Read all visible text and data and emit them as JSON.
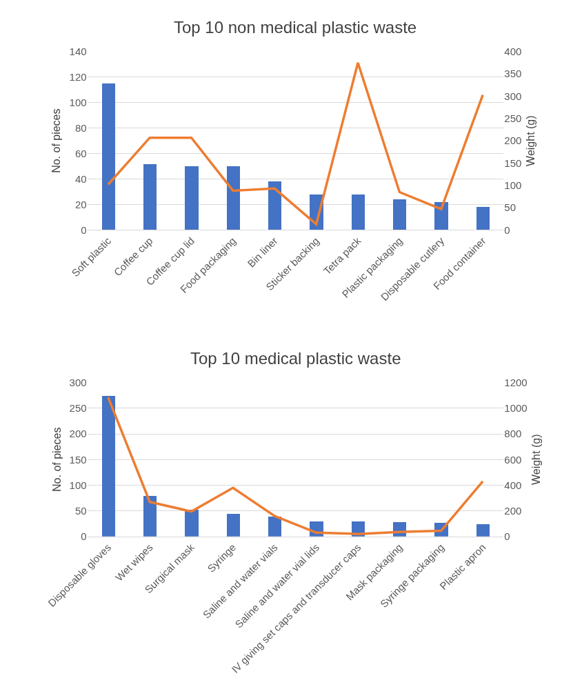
{
  "chart_data": [
    {
      "type": "bar",
      "title": "Top 10 non medical plastic waste",
      "categories": [
        "Soft plastic",
        "Coffee cup",
        "Coffee cup lid",
        "Food packaging",
        "Bin liner",
        "Sticker backing",
        "Tetra pack",
        "Plastic packaging",
        "Disposable cutlery",
        "Food container"
      ],
      "series": [
        {
          "color": "#4472c4",
          "values": [
            115,
            52,
            50,
            50,
            38,
            28,
            28,
            24,
            22,
            18
          ]
        },
        {
          "type": "line",
          "axis": "y2",
          "color": "#ed7d31",
          "values": [
            102,
            207,
            207,
            88,
            93,
            13,
            375,
            85,
            47,
            303
          ]
        }
      ],
      "ylabel": "No. of pieces",
      "y2label": "Weight (g)",
      "ylim": [
        0,
        140
      ],
      "yticks": [
        0,
        20,
        40,
        60,
        80,
        100,
        120,
        140
      ],
      "y2lim": [
        0,
        400
      ],
      "y2ticks": [
        0,
        50,
        100,
        150,
        200,
        250,
        300,
        350,
        400
      ],
      "grid": "y",
      "marker": "none"
    },
    {
      "type": "bar",
      "title": "Top 10 medical plastic waste",
      "categories": [
        "Disposable gloves",
        "Wet wipes",
        "Surgical mask",
        "Syringe",
        "Saline and water vials",
        "Saline and water vial lids",
        "IV giving set caps and transducer caps",
        "Mask packaging",
        "Syringe packaging",
        "Plastic apron"
      ],
      "series": [
        {
          "color": "#4472c4",
          "values": [
            274,
            79,
            53,
            44,
            39,
            30,
            30,
            29,
            27,
            24
          ]
        },
        {
          "type": "line",
          "axis": "y2",
          "color": "#ed7d31",
          "values": [
            1085,
            270,
            195,
            380,
            160,
            30,
            20,
            35,
            45,
            430
          ]
        }
      ],
      "ylabel": "No. of pieces",
      "y2label": "Weight (g)",
      "ylim": [
        0,
        300
      ],
      "yticks": [
        0,
        50,
        100,
        150,
        200,
        250,
        300
      ],
      "y2lim": [
        0,
        1200
      ],
      "y2ticks": [
        0,
        200,
        400,
        600,
        800,
        1000,
        1200
      ],
      "grid": "y",
      "marker": "none"
    }
  ]
}
